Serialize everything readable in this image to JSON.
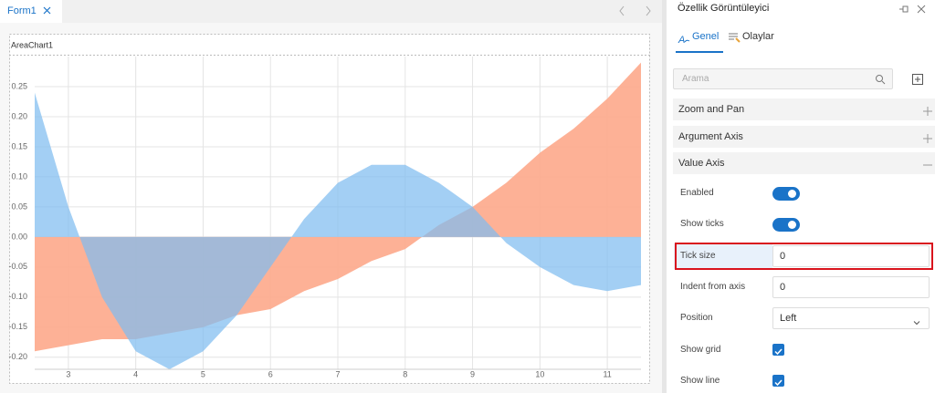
{
  "document_tabs": [
    "Form1"
  ],
  "form": {
    "control_label": "AreaChart1"
  },
  "chart_data": {
    "type": "area",
    "x": [
      2.5,
      3,
      3.5,
      4,
      4.5,
      5,
      5.5,
      6,
      6.5,
      7,
      7.5,
      8,
      8.5,
      9,
      9.5,
      10,
      10.5,
      11,
      11.5
    ],
    "series": [
      {
        "color": "#fda98b",
        "values": [
          -0.19,
          -0.18,
          -0.17,
          -0.17,
          -0.16,
          -0.15,
          -0.13,
          -0.12,
          -0.09,
          -0.07,
          -0.04,
          -0.02,
          0.02,
          0.05,
          0.09,
          0.14,
          0.18,
          0.23,
          0.29
        ]
      },
      {
        "color": "#7fbdf0",
        "values": [
          0.24,
          0.05,
          -0.1,
          -0.19,
          -0.22,
          -0.19,
          -0.13,
          -0.05,
          0.03,
          0.09,
          0.12,
          0.12,
          0.09,
          0.05,
          -0.01,
          -0.05,
          -0.08,
          -0.09,
          -0.08
        ]
      }
    ],
    "xlim": [
      2.5,
      11.5
    ],
    "xticks": [
      3,
      4,
      5,
      6,
      7,
      8,
      9,
      10,
      11
    ],
    "ylim": [
      -0.22,
      0.3
    ],
    "yticks": [
      0.25,
      {
        "value": 0.2,
        "label": "0.20"
      },
      0.15,
      {
        "value": 0.1,
        "label": "0.10"
      },
      0.05,
      {
        "value": 0,
        "label": "0.00"
      },
      -0.05,
      {
        "value": -0.1,
        "label": "-0.10"
      },
      -0.15,
      {
        "value": -0.2,
        "label": "-0.20"
      }
    ],
    "grid": true
  },
  "property_panel": {
    "title": "Özellik Görüntüleyici",
    "tabs": [
      "Genel",
      "Olaylar"
    ],
    "search_placeholder": "Arama",
    "sections": [
      {
        "label": "Zoom and Pan",
        "expanded": false
      },
      {
        "label": "Argument Axis",
        "expanded": false
      },
      {
        "label": "Value Axis",
        "expanded": true
      }
    ],
    "properties": [
      {
        "label": "Enabled",
        "toggle": true
      },
      {
        "label": "Show ticks",
        "toggle": true
      },
      {
        "label": "Tick size",
        "input": "0",
        "highlighted": true
      },
      {
        "label": "Indent from axis",
        "input": "0"
      },
      {
        "label": "Position",
        "select": "Left"
      },
      {
        "label": "Show grid",
        "checkbox": true
      },
      {
        "label": "Show line",
        "checkbox": true
      }
    ]
  }
}
